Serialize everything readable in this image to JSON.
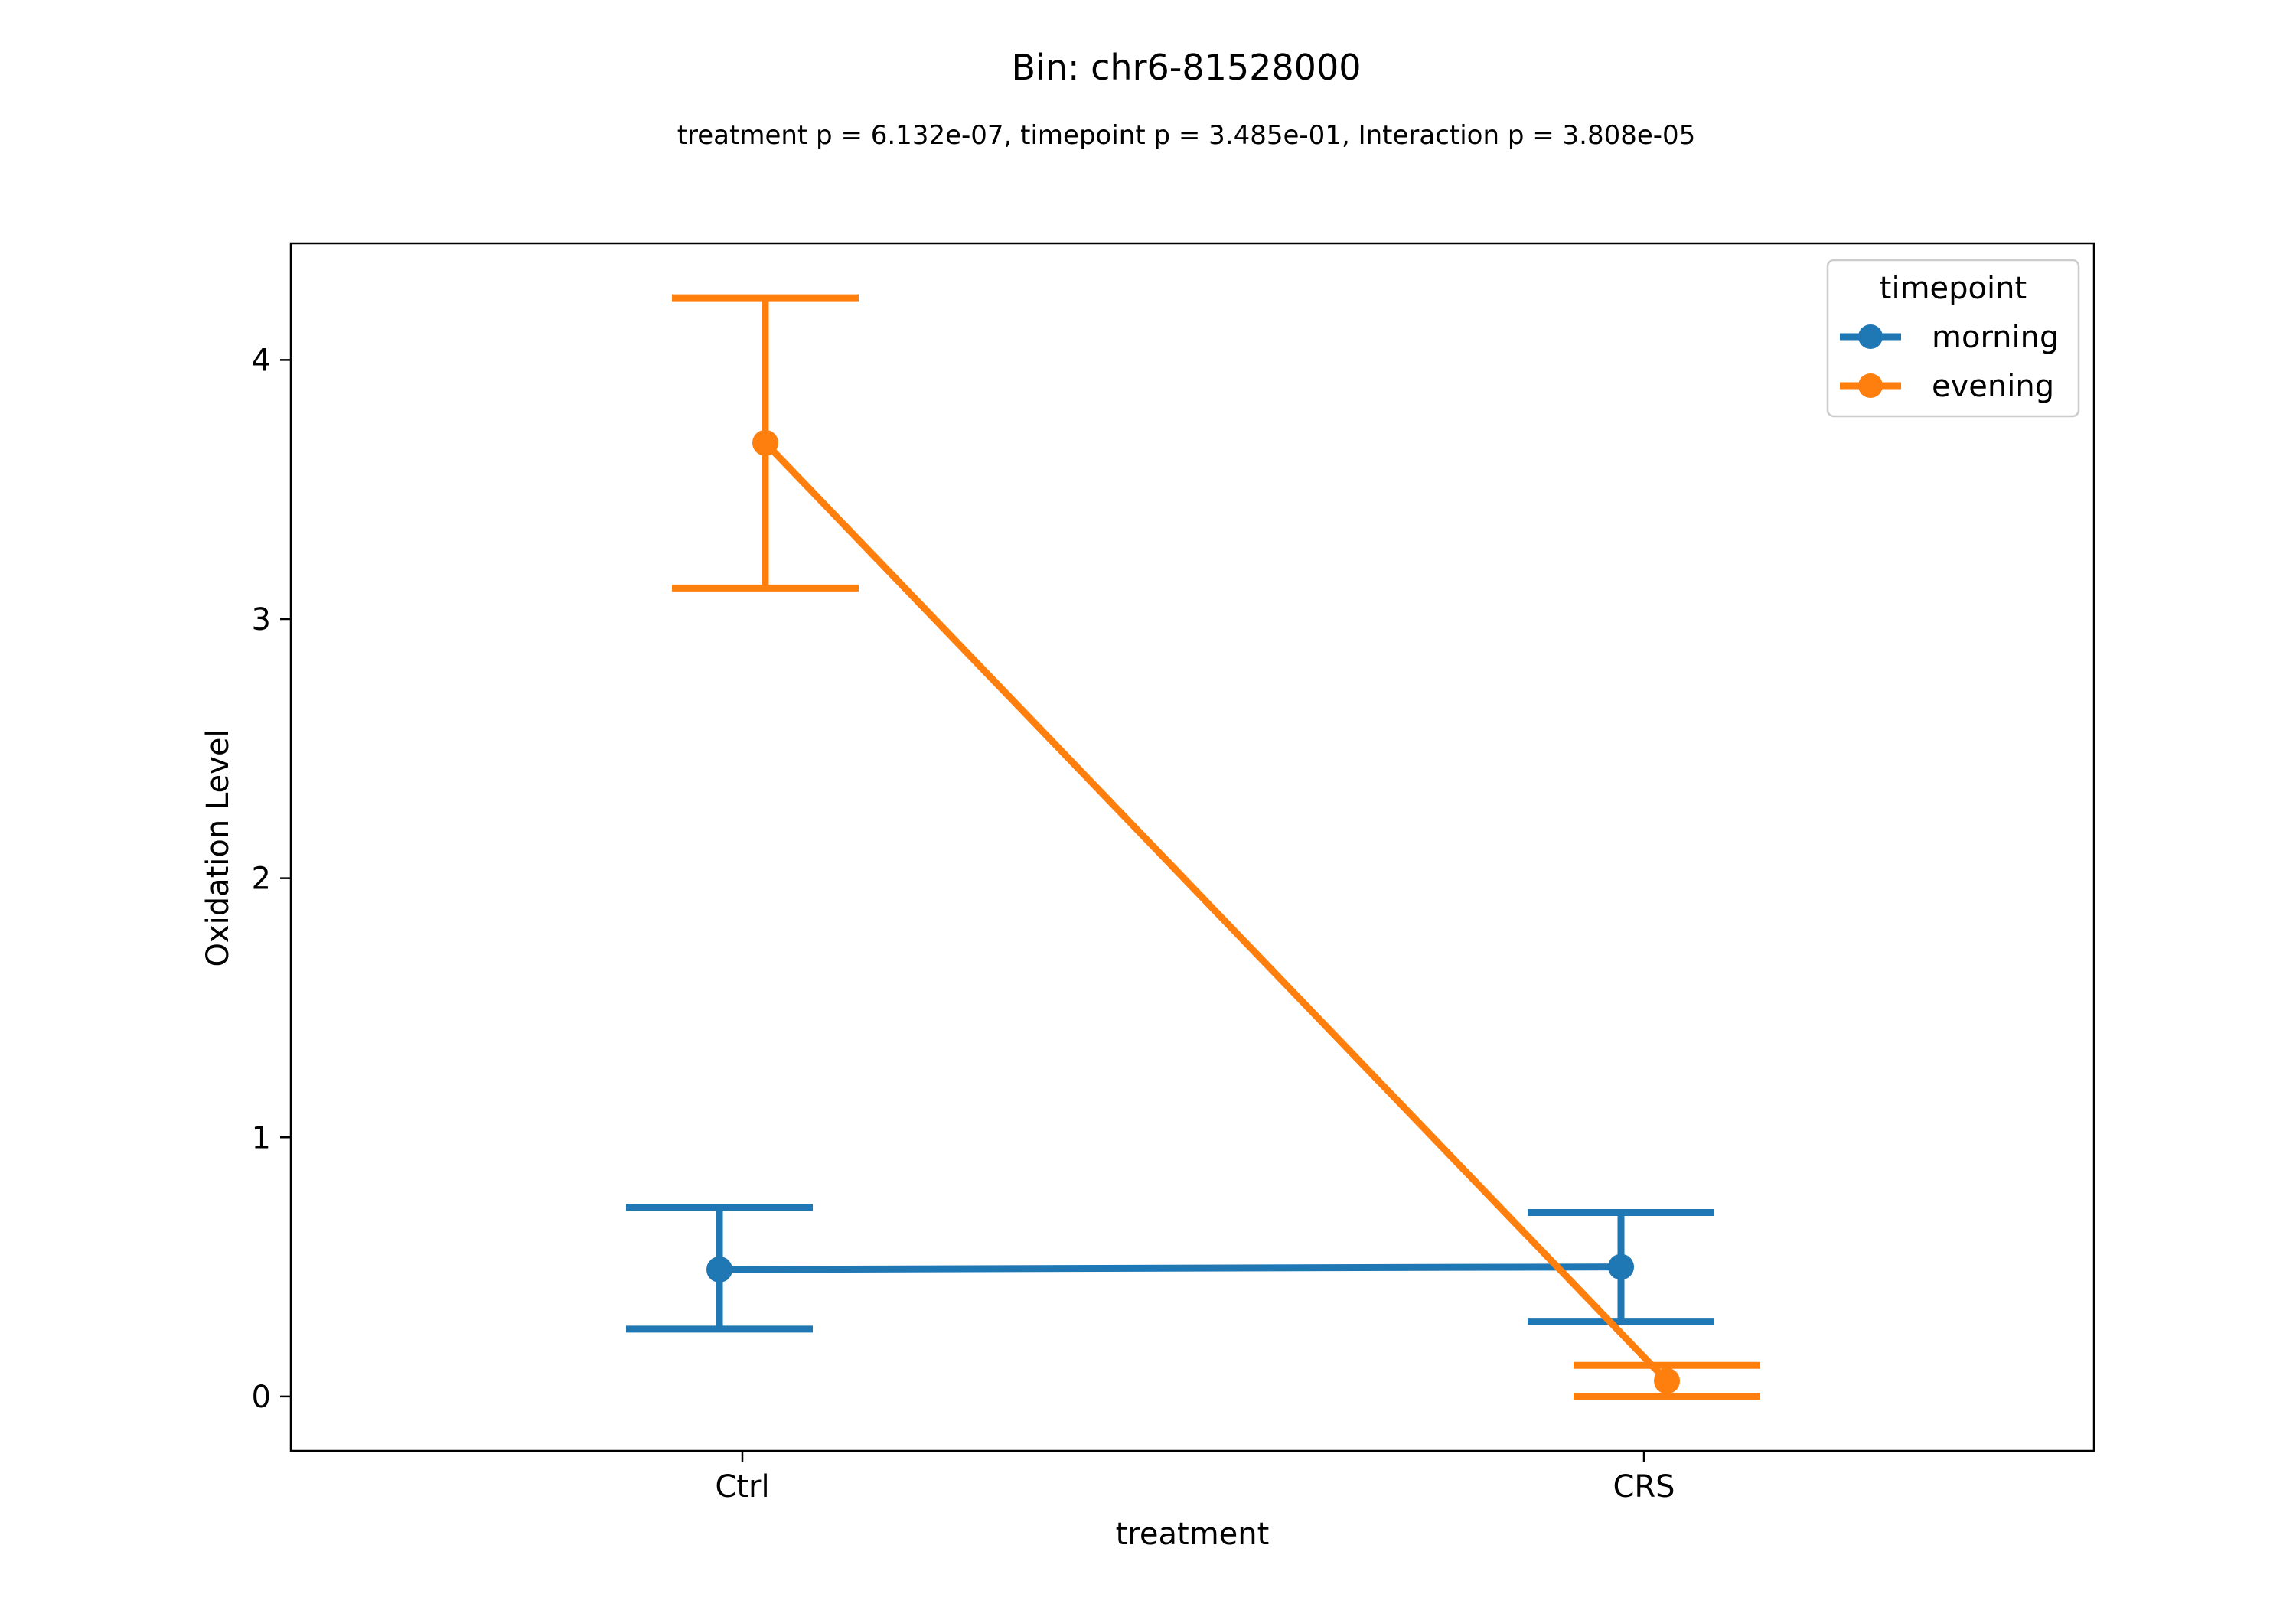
{
  "chart_data": {
    "type": "line",
    "title": "Bin: chr6-81528000",
    "subtitle": "treatment p = 6.132e-07, timepoint p = 3.485e-01, Interaction p = 3.808e-05",
    "xlabel": "treatment",
    "ylabel": "Oxidation Level",
    "categories": [
      "Ctrl",
      "CRS"
    ],
    "yticks": [
      0,
      1,
      2,
      3,
      4
    ],
    "ylim": [
      -0.21,
      4.45
    ],
    "grid": false,
    "legend": {
      "title": "timepoint",
      "placement": "top-right"
    },
    "series": [
      {
        "name": "morning",
        "color": "#1f77b4",
        "values": [
          0.49,
          0.5
        ],
        "err_low": [
          0.26,
          0.29
        ],
        "err_high": [
          0.73,
          0.71
        ]
      },
      {
        "name": "evening",
        "color": "#ff7f0e",
        "values": [
          3.68,
          0.06
        ],
        "err_low": [
          3.12,
          0.0
        ],
        "err_high": [
          4.24,
          0.12
        ]
      }
    ]
  }
}
